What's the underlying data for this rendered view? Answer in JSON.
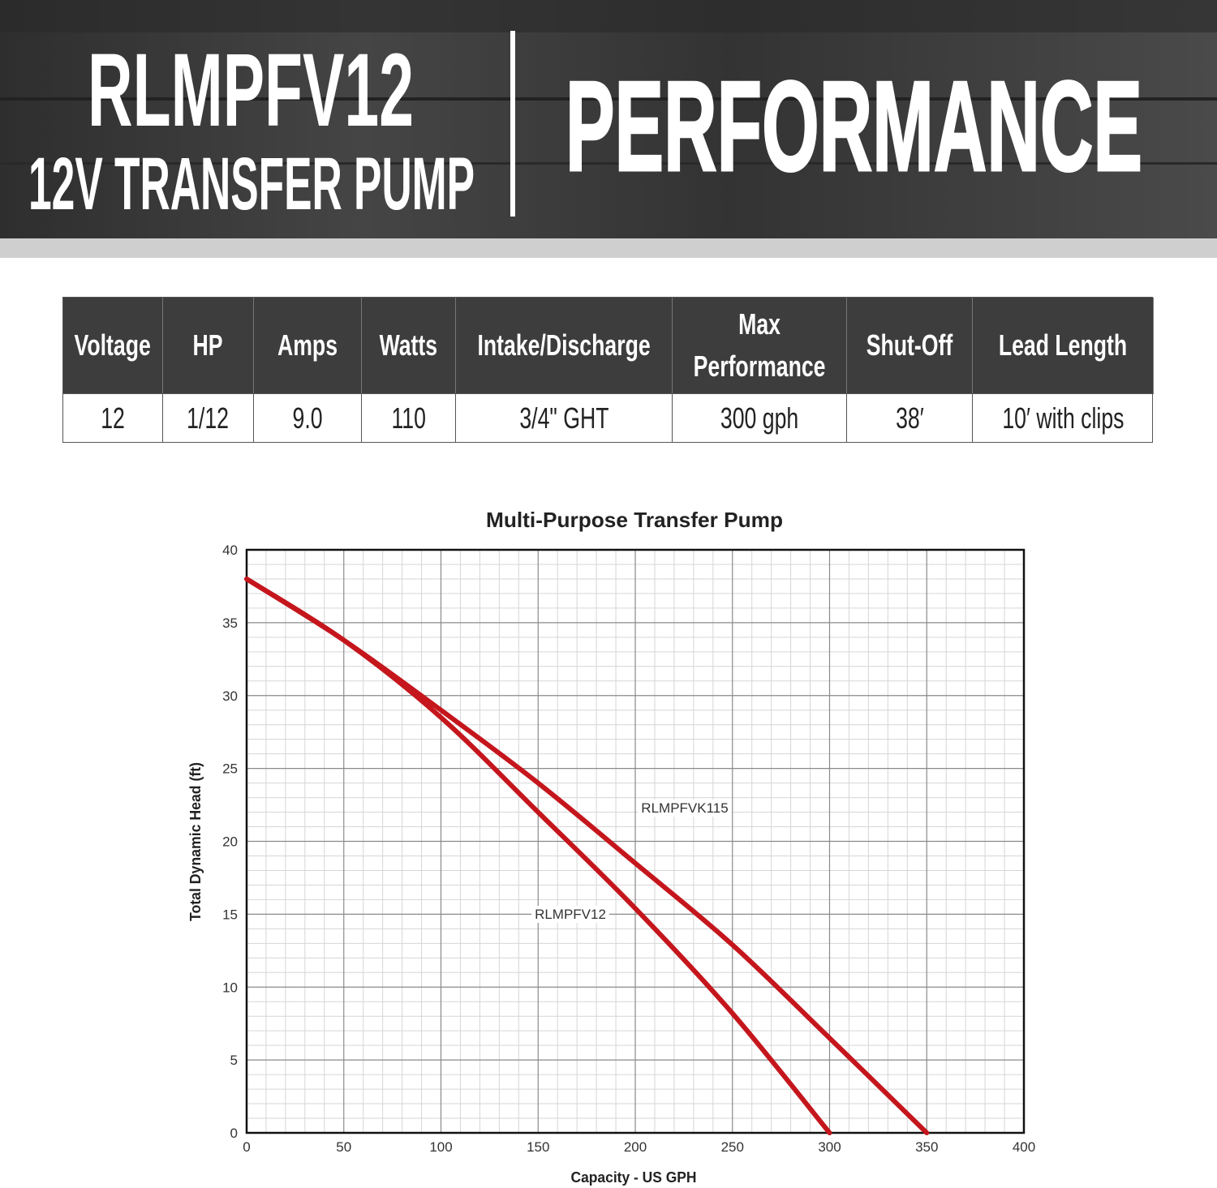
{
  "header": {
    "model": "RLMPFV12",
    "subtitle": "12V TRANSFER PUMP",
    "heading": "PERFORMANCE"
  },
  "table": {
    "columns": [
      "Voltage",
      "HP",
      "Amps",
      "Watts",
      "Intake/Discharge",
      "Max Performance",
      "Shut-Off",
      "Lead Length"
    ],
    "rows": [
      [
        "12",
        "1/12",
        "9.0",
        "110",
        "3/4\" GHT",
        "300 gph",
        "38′",
        "10′ with clips"
      ]
    ]
  },
  "chart_data": {
    "type": "line",
    "title": "Multi-Purpose Transfer Pump",
    "x_label": "Capacity - US GPH",
    "y_label": "Total Dynamic Head (ft)",
    "x": [
      0,
      50,
      100,
      150,
      200,
      250,
      300,
      350
    ],
    "series": [
      {
        "name": "RLMPFVK115",
        "color": "#c4161c",
        "values": [
          38,
          33.8,
          29,
          24,
          18.5,
          12.9,
          6.5,
          0
        ]
      },
      {
        "name": "RLMPFV12",
        "color": "#c4161c",
        "values": [
          38,
          33.8,
          28.5,
          22,
          15.4,
          8.2,
          0,
          null
        ]
      }
    ],
    "xlim": [
      0,
      400
    ],
    "xticks": [
      0,
      50,
      100,
      150,
      200,
      250,
      300,
      350,
      400
    ],
    "ylim": [
      0,
      40
    ],
    "yticks": [
      0,
      5,
      10,
      15,
      20,
      25,
      30,
      35,
      40
    ],
    "grid": true
  }
}
